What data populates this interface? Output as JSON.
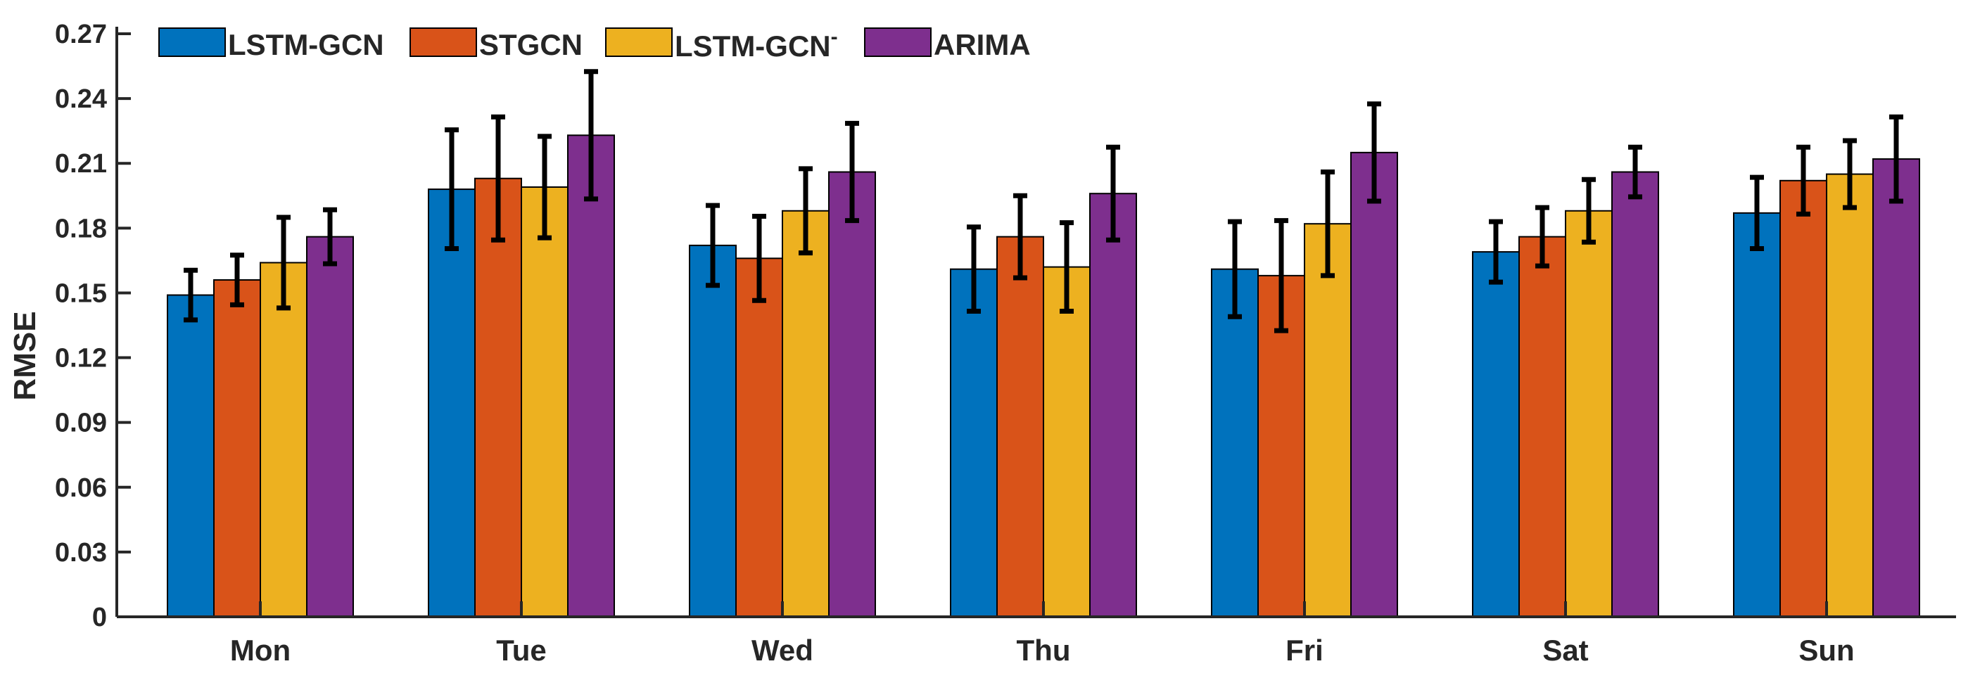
{
  "chart_data": {
    "type": "bar",
    "title": "",
    "xlabel": "",
    "ylabel": "RMSE",
    "ylim": [
      0,
      0.27
    ],
    "yticks": [
      "0",
      "0.03",
      "0.06",
      "0.09",
      "0.12",
      "0.15",
      "0.18",
      "0.21",
      "0.24",
      "0.27"
    ],
    "ytick_values": [
      0,
      0.03,
      0.06,
      0.09,
      0.12,
      0.15,
      0.18,
      0.21,
      0.24,
      0.27
    ],
    "categories": [
      "Mon",
      "Tue",
      "Wed",
      "Thu",
      "Fri",
      "Sat",
      "Sun"
    ],
    "legend_position": "top-left",
    "series": [
      {
        "name": "LSTM-GCN",
        "color": "#0072BD",
        "values": [
          0.149,
          0.198,
          0.172,
          0.161,
          0.161,
          0.169,
          0.187
        ],
        "errors": [
          0.0115,
          0.0275,
          0.0185,
          0.0195,
          0.022,
          0.014,
          0.0165
        ]
      },
      {
        "name": "STGCN",
        "color": "#D95319",
        "values": [
          0.156,
          0.203,
          0.166,
          0.176,
          0.158,
          0.176,
          0.202
        ],
        "errors": [
          0.0115,
          0.0285,
          0.0195,
          0.019,
          0.0255,
          0.0135,
          0.0155
        ]
      },
      {
        "name": "LSTM-GCN",
        "superscript": "-",
        "color": "#EDB120",
        "values": [
          0.164,
          0.199,
          0.188,
          0.162,
          0.182,
          0.188,
          0.205
        ],
        "errors": [
          0.021,
          0.0235,
          0.0195,
          0.0205,
          0.024,
          0.0145,
          0.0155
        ]
      },
      {
        "name": "ARIMA",
        "color": "#7E2F8E",
        "values": [
          0.176,
          0.223,
          0.206,
          0.196,
          0.215,
          0.206,
          0.212
        ],
        "errors": [
          0.0125,
          0.0295,
          0.0225,
          0.0215,
          0.0225,
          0.0115,
          0.0195
        ]
      }
    ]
  }
}
